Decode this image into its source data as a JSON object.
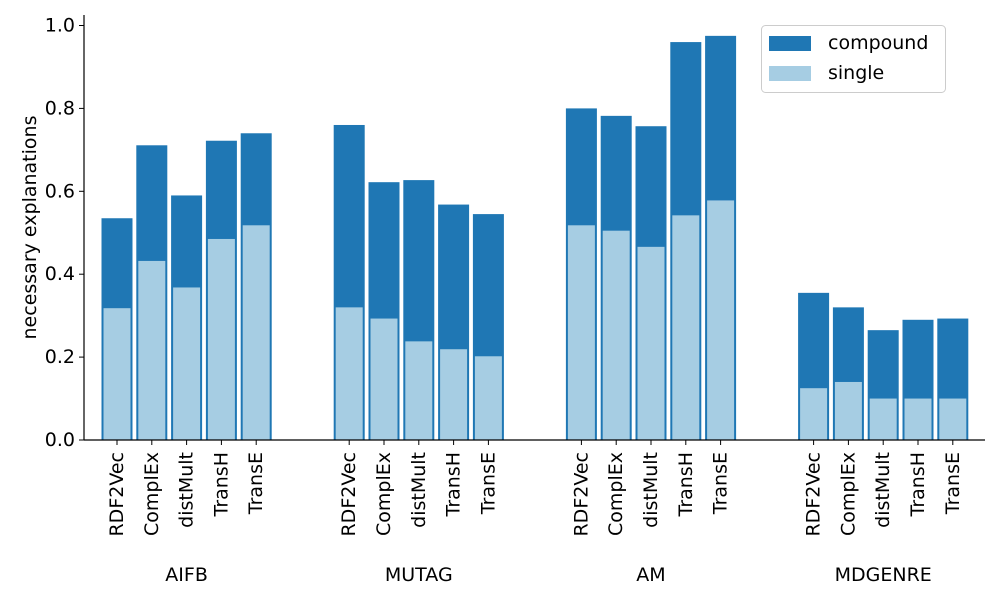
{
  "chart_data": {
    "type": "bar",
    "ylabel": "necessary explanations",
    "ylim": [
      0,
      1.02
    ],
    "yticks": [
      0.0,
      0.2,
      0.4,
      0.6,
      0.8,
      1.0
    ],
    "ytick_labels": [
      "0.0",
      "0.2",
      "0.4",
      "0.6",
      "0.8",
      "1.0"
    ],
    "legend_position": "top-right",
    "colors": {
      "compound": "#1f77b4",
      "single": "#a6cde3"
    },
    "series": [
      {
        "name": "compound",
        "color": "#1f77b4"
      },
      {
        "name": "single",
        "color": "#a6cde3"
      }
    ],
    "groups": [
      {
        "name": "AIFB",
        "bars": [
          {
            "label": "RDF2Vec",
            "compound": 0.535,
            "single": 0.318
          },
          {
            "label": "ComplEx",
            "compound": 0.711,
            "single": 0.432
          },
          {
            "label": "distMult",
            "compound": 0.59,
            "single": 0.368
          },
          {
            "label": "TransH",
            "compound": 0.722,
            "single": 0.485
          },
          {
            "label": "TransE",
            "compound": 0.74,
            "single": 0.518
          }
        ]
      },
      {
        "name": "MUTAG",
        "bars": [
          {
            "label": "RDF2Vec",
            "compound": 0.76,
            "single": 0.32
          },
          {
            "label": "ComplEx",
            "compound": 0.622,
            "single": 0.293
          },
          {
            "label": "distMult",
            "compound": 0.627,
            "single": 0.238
          },
          {
            "label": "TransH",
            "compound": 0.568,
            "single": 0.219
          },
          {
            "label": "TransE",
            "compound": 0.545,
            "single": 0.202
          }
        ]
      },
      {
        "name": "AM",
        "bars": [
          {
            "label": "RDF2Vec",
            "compound": 0.8,
            "single": 0.518
          },
          {
            "label": "ComplEx",
            "compound": 0.782,
            "single": 0.505
          },
          {
            "label": "distMult",
            "compound": 0.757,
            "single": 0.466
          },
          {
            "label": "TransH",
            "compound": 0.96,
            "single": 0.542
          },
          {
            "label": "TransE",
            "compound": 0.975,
            "single": 0.578
          }
        ]
      },
      {
        "name": "MDGENRE",
        "bars": [
          {
            "label": "RDF2Vec",
            "compound": 0.355,
            "single": 0.125
          },
          {
            "label": "ComplEx",
            "compound": 0.32,
            "single": 0.14
          },
          {
            "label": "distMult",
            "compound": 0.265,
            "single": 0.1
          },
          {
            "label": "TransH",
            "compound": 0.29,
            "single": 0.1
          },
          {
            "label": "TransE",
            "compound": 0.293,
            "single": 0.1
          }
        ]
      }
    ]
  }
}
